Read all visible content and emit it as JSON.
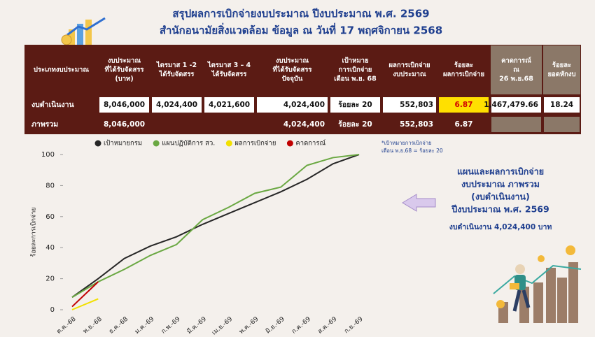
{
  "header": {
    "title": "สรุปผลการเบิกจ่ายงบประมาณ ปีงบประมาณ พ.ศ. 2569",
    "subtitle": "สำนักอนามัยสิ่งแวดล้อม ข้อมูล ณ วันที่ 17 พฤศจิกายน 2568"
  },
  "table": {
    "headers": [
      [
        "ประเภทงบประมาณ"
      ],
      [
        "งบประมาณ",
        "ที่ได้รับจัดสรร",
        "(บาท)"
      ],
      [
        "ไตรมาส 1 -2",
        "ได้รับจัดสรร"
      ],
      [
        "ไตรมาส 3 – 4",
        "ได้รับจัดสรร"
      ],
      [
        "งบประมาณ",
        "ที่ได้รับจัดสรร",
        "ปัจจุบัน"
      ],
      [
        "เป้าหมาย",
        "การเบิกจ่าย",
        "เดือน พ.ย. 68"
      ],
      [
        "ผลการเบิกจ่าย",
        "งบประมาณ"
      ],
      [
        "ร้อยละ",
        "ผลการเบิกจ่าย"
      ],
      [
        "คาดการณ์",
        "ณ",
        "26 พ.ย.68"
      ],
      [
        "ร้อยละ",
        "ยอดหักงบ"
      ]
    ],
    "rows": [
      [
        "งบดำเนินงาน",
        "8,046,000",
        "4,024,400",
        "4,021,600",
        "4,024,400",
        "ร้อยละ 20",
        "552,803",
        "6.87",
        "1,467,479.66",
        "18.24"
      ],
      [
        "ภาพรวม",
        "8,046,000",
        null,
        null,
        "4,024,400",
        "ร้อยละ 20",
        "552,803",
        "6.87",
        null,
        null
      ]
    ]
  },
  "chart_data": {
    "type": "line",
    "y_label": "ร้อยละการเบิกจ่าย",
    "categories": [
      "ต.ค.-68",
      "พ.ย.-68",
      "ธ.ค.-68",
      "ม.ค.-69",
      "ก.พ.-69",
      "มี.ค.-69",
      "เม.ย.-69",
      "พ.ค.-69",
      "มิ.ย.-69",
      "ก.ค.-69",
      "ส.ค.-69",
      "ก.ย.-69"
    ],
    "series": [
      {
        "name": "เป้าหมายกรม",
        "color": "#262626",
        "values": [
          8,
          20,
          33,
          41,
          47,
          55,
          62,
          69,
          76,
          84,
          94,
          100
        ]
      },
      {
        "name": "แผนปฏิบัติการ สว.",
        "color": "#6aa842",
        "values": [
          8,
          18,
          26,
          35,
          42,
          58,
          66,
          75,
          79,
          93,
          98,
          100
        ]
      },
      {
        "name": "ผลการเบิกจ่าย",
        "color": "#f2e000",
        "values": [
          0,
          7,
          null,
          null,
          null,
          null,
          null,
          null,
          null,
          null,
          null,
          null
        ]
      },
      {
        "name": "คาดการณ์",
        "color": "#c00000",
        "values": [
          2,
          18,
          null,
          null,
          null,
          null,
          null,
          null,
          null,
          null,
          null,
          null
        ]
      }
    ],
    "ylim": [
      0,
      100
    ],
    "yticks": [
      0,
      20,
      40,
      60,
      80,
      100
    ],
    "note": [
      "*เป้าหมายการเบิกจ่าย",
      "เดือน พ.ย.68 = ร้อยละ 20"
    ]
  },
  "side_panel": {
    "lines": [
      "แผนและผลการเบิกจ่าย",
      "งบประมาณ ภาพรวม",
      "(งบดำเนินงาน)",
      "ปีงบประมาณ พ.ศ. 2569"
    ],
    "footer": "งบดำเนินงาน 4,024,400 บาท"
  }
}
